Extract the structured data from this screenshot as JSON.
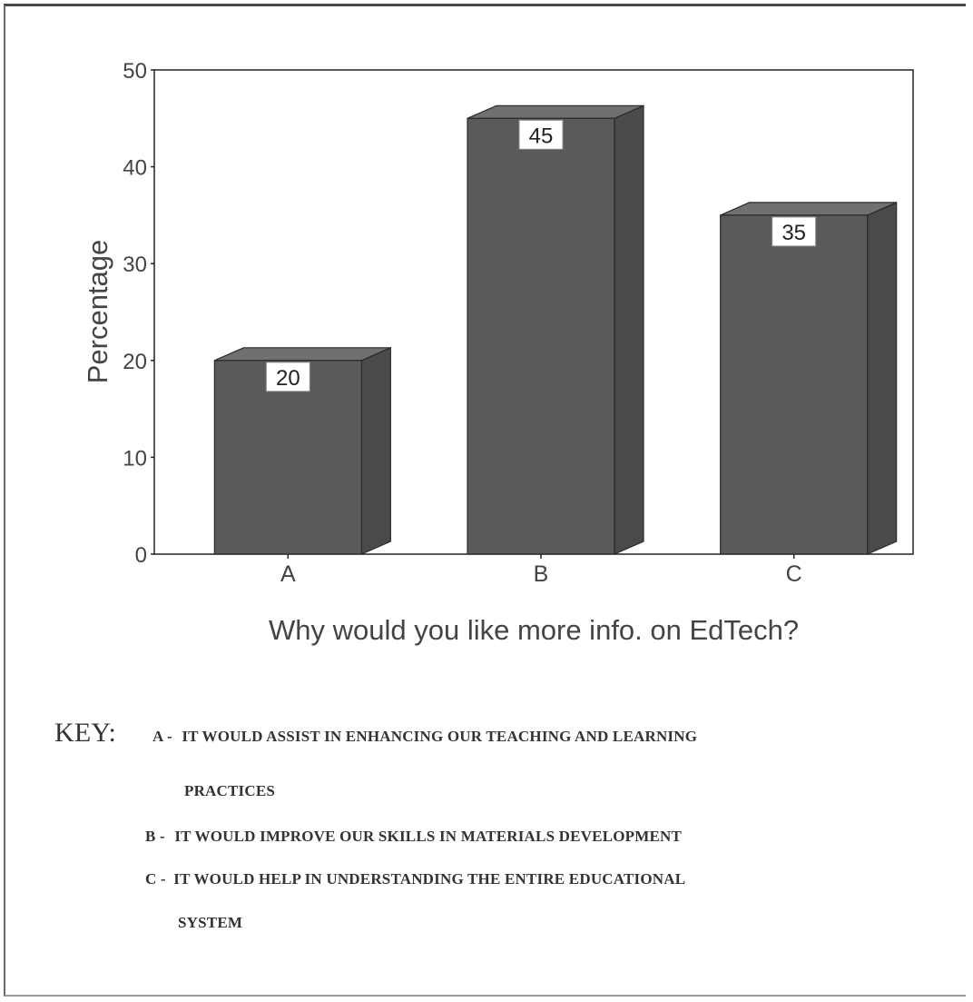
{
  "chart_data": {
    "type": "bar",
    "categories": [
      "A",
      "B",
      "C"
    ],
    "values": [
      20,
      45,
      35
    ],
    "data_labels": [
      "20",
      "45",
      "35"
    ],
    "title": "Why would you like more info. on EdTech?",
    "xlabel": "",
    "ylabel": "Percentage",
    "ylim": [
      0,
      50
    ],
    "yticks": [
      "0",
      "10",
      "20",
      "30",
      "40",
      "50"
    ],
    "grid": false,
    "style": "3d",
    "bar_color": "#5a5a5a"
  },
  "key": {
    "heading": "KEY:",
    "items": [
      {
        "letter": "A -",
        "text": "IT WOULD ASSIST IN ENHANCING OUR TEACHING AND LEARNING",
        "continuation": "PRACTICES"
      },
      {
        "letter": "B -",
        "text": "IT WOULD IMPROVE OUR SKILLS IN MATERIALS DEVELOPMENT"
      },
      {
        "letter": "C -",
        "text": "IT WOULD HELP IN UNDERSTANDING THE ENTIRE EDUCATIONAL",
        "continuation": "SYSTEM"
      }
    ]
  }
}
